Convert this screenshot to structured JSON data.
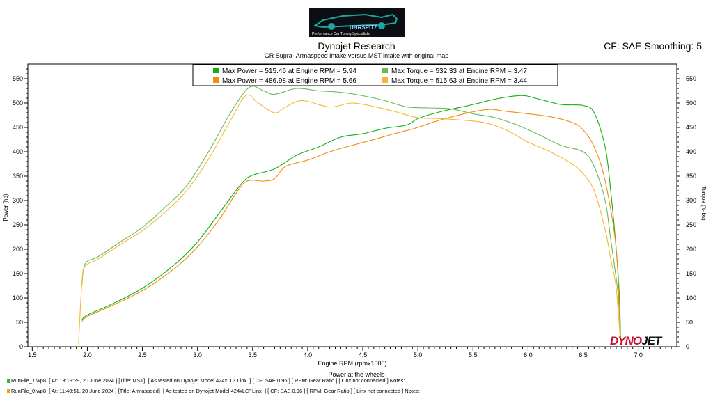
{
  "header": {
    "title": "Dynojet Research",
    "subtitle": "GR Supra- Armaspeed intake versus MST intake with original map",
    "cf_smoothing": "CF: SAE Smoothing: 5"
  },
  "logo": {
    "text": "Performance Car Tuning Specialists",
    "name_text": "UHRSPITZ",
    "bg": "#0b0f14",
    "car_color": "#1fa6a0"
  },
  "brand": {
    "dyno": "DYNO",
    "jet": "JET"
  },
  "footer": {
    "chart_label": "Power at the wheels",
    "runs": [
      {
        "text": "RunFile_1.wp8  [ At: 13:19:29, 20 June 2024 ] [Title: MST]  [ As tested on Dynojet Model 424xLC² Linx  ] [ CF: SAE 0.96 ] [ RPM: Gear Ratio ] [ Linx not connected ] Notes:",
        "color": "#2eb82e"
      },
      {
        "text": "RunFile_0.wp8  [ At: 11:40:51, 20 June 2024 ] [Title: Armaspeed]  [ As tested on Dynojet Model 424xLC² Linx  ] [ CF: SAE 0.96 ] [ RPM: Gear Ratio ] [ Linx not connected ] Notes:",
        "color": "#f0a020"
      }
    ]
  },
  "chart_data": {
    "type": "line",
    "title": "Dynojet Research",
    "subtitle": "GR Supra- Armaspeed intake versus MST intake with original map",
    "xlabel": "Engine RPM (rpmx1000)",
    "ylabel_left": "Power (hp)",
    "ylabel_right": "Torque (ft-lbs)",
    "xlim": [
      1.46,
      7.35
    ],
    "ylim": [
      0,
      580
    ],
    "x_ticks": [
      "1.5",
      "2.0",
      "2.5",
      "3.0",
      "3.5",
      "4.0",
      "4.5",
      "5.0",
      "5.5",
      "6.0",
      "6.5",
      "7.0"
    ],
    "x_tick_values": [
      1.5,
      2.0,
      2.5,
      3.0,
      3.5,
      4.0,
      4.5,
      5.0,
      5.5,
      6.0,
      6.5,
      7.0
    ],
    "y_ticks": [
      "0",
      "50",
      "100",
      "150",
      "200",
      "250",
      "300",
      "350",
      "400",
      "450",
      "500",
      "550"
    ],
    "y_tick_values": [
      0,
      50,
      100,
      150,
      200,
      250,
      300,
      350,
      400,
      450,
      500,
      550
    ],
    "grid": false,
    "legend_position": "top-center",
    "legend": [
      {
        "label": "Max Power = 515.46 at Engine RPM = 5.94",
        "color": "#11b011"
      },
      {
        "label": "Max Torque = 532.33 at Engine RPM = 3.47",
        "color": "#66bb55"
      },
      {
        "label": "Max Power = 486.98 at Engine RPM = 5.66",
        "color": "#f08c10"
      },
      {
        "label": "Max Torque = 515.63 at Engine RPM = 3.44",
        "color": "#f5b830"
      }
    ],
    "series": [
      {
        "name": "Max Power = 515.46 at Engine RPM = 5.94",
        "color": "#11b011",
        "points": [
          [
            1.95,
            55
          ],
          [
            2.0,
            65
          ],
          [
            2.2,
            85
          ],
          [
            2.5,
            120
          ],
          [
            2.8,
            170
          ],
          [
            3.0,
            215
          ],
          [
            3.2,
            275
          ],
          [
            3.4,
            335
          ],
          [
            3.5,
            352
          ],
          [
            3.7,
            365
          ],
          [
            3.9,
            393
          ],
          [
            4.1,
            410
          ],
          [
            4.3,
            430
          ],
          [
            4.5,
            437
          ],
          [
            4.7,
            448
          ],
          [
            4.9,
            455
          ],
          [
            5.0,
            468
          ],
          [
            5.2,
            482
          ],
          [
            5.5,
            497
          ],
          [
            5.7,
            508
          ],
          [
            5.94,
            515.46
          ],
          [
            6.1,
            508
          ],
          [
            6.3,
            497
          ],
          [
            6.5,
            495
          ],
          [
            6.6,
            480
          ],
          [
            6.7,
            410
          ],
          [
            6.75,
            320
          ],
          [
            6.8,
            200
          ],
          [
            6.83,
            100
          ],
          [
            6.84,
            15
          ]
        ]
      },
      {
        "name": "Max Torque = 532.33 at Engine RPM = 3.47",
        "color": "#66bb55",
        "points": [
          [
            1.95,
            125
          ],
          [
            1.98,
            170
          ],
          [
            2.1,
            185
          ],
          [
            2.3,
            215
          ],
          [
            2.5,
            245
          ],
          [
            2.7,
            285
          ],
          [
            2.9,
            330
          ],
          [
            3.1,
            400
          ],
          [
            3.3,
            480
          ],
          [
            3.47,
            532.33
          ],
          [
            3.6,
            525
          ],
          [
            3.7,
            518
          ],
          [
            3.9,
            530
          ],
          [
            4.1,
            525
          ],
          [
            4.3,
            522
          ],
          [
            4.5,
            515
          ],
          [
            4.7,
            505
          ],
          [
            4.9,
            492
          ],
          [
            5.1,
            490
          ],
          [
            5.3,
            488
          ],
          [
            5.5,
            478
          ],
          [
            5.7,
            470
          ],
          [
            5.9,
            455
          ],
          [
            6.1,
            435
          ],
          [
            6.3,
            413
          ],
          [
            6.5,
            400
          ],
          [
            6.6,
            370
          ],
          [
            6.7,
            300
          ],
          [
            6.75,
            220
          ],
          [
            6.8,
            140
          ],
          [
            6.82,
            100
          ],
          [
            6.84,
            15
          ]
        ]
      },
      {
        "name": "Max Power = 486.98 at Engine RPM = 5.66",
        "color": "#f08c10",
        "points": [
          [
            1.95,
            52
          ],
          [
            2.0,
            62
          ],
          [
            2.2,
            82
          ],
          [
            2.5,
            115
          ],
          [
            2.8,
            162
          ],
          [
            3.0,
            205
          ],
          [
            3.2,
            262
          ],
          [
            3.35,
            315
          ],
          [
            3.45,
            340
          ],
          [
            3.6,
            340
          ],
          [
            3.7,
            345
          ],
          [
            3.8,
            370
          ],
          [
            4.0,
            383
          ],
          [
            4.2,
            400
          ],
          [
            4.4,
            413
          ],
          [
            4.6,
            425
          ],
          [
            4.8,
            438
          ],
          [
            5.0,
            450
          ],
          [
            5.2,
            465
          ],
          [
            5.5,
            482
          ],
          [
            5.66,
            486.98
          ],
          [
            5.8,
            483
          ],
          [
            6.0,
            478
          ],
          [
            6.2,
            472
          ],
          [
            6.4,
            460
          ],
          [
            6.5,
            445
          ],
          [
            6.6,
            410
          ],
          [
            6.7,
            340
          ],
          [
            6.8,
            200
          ],
          [
            6.84,
            10
          ]
        ]
      },
      {
        "name": "Max Torque = 515.63 at Engine RPM = 3.44",
        "color": "#f5b830",
        "points": [
          [
            1.92,
            5
          ],
          [
            1.95,
            130
          ],
          [
            1.98,
            165
          ],
          [
            2.1,
            180
          ],
          [
            2.3,
            210
          ],
          [
            2.5,
            238
          ],
          [
            2.7,
            275
          ],
          [
            2.9,
            320
          ],
          [
            3.1,
            385
          ],
          [
            3.3,
            465
          ],
          [
            3.44,
            515.63
          ],
          [
            3.55,
            500
          ],
          [
            3.7,
            480
          ],
          [
            3.8,
            492
          ],
          [
            3.95,
            505
          ],
          [
            4.2,
            492
          ],
          [
            4.4,
            500
          ],
          [
            4.6,
            493
          ],
          [
            4.8,
            482
          ],
          [
            5.0,
            470
          ],
          [
            5.2,
            468
          ],
          [
            5.4,
            465
          ],
          [
            5.6,
            460
          ],
          [
            5.8,
            445
          ],
          [
            6.0,
            420
          ],
          [
            6.2,
            400
          ],
          [
            6.4,
            375
          ],
          [
            6.5,
            355
          ],
          [
            6.6,
            320
          ],
          [
            6.7,
            240
          ],
          [
            6.75,
            180
          ],
          [
            6.8,
            120
          ],
          [
            6.84,
            5
          ]
        ]
      }
    ]
  }
}
